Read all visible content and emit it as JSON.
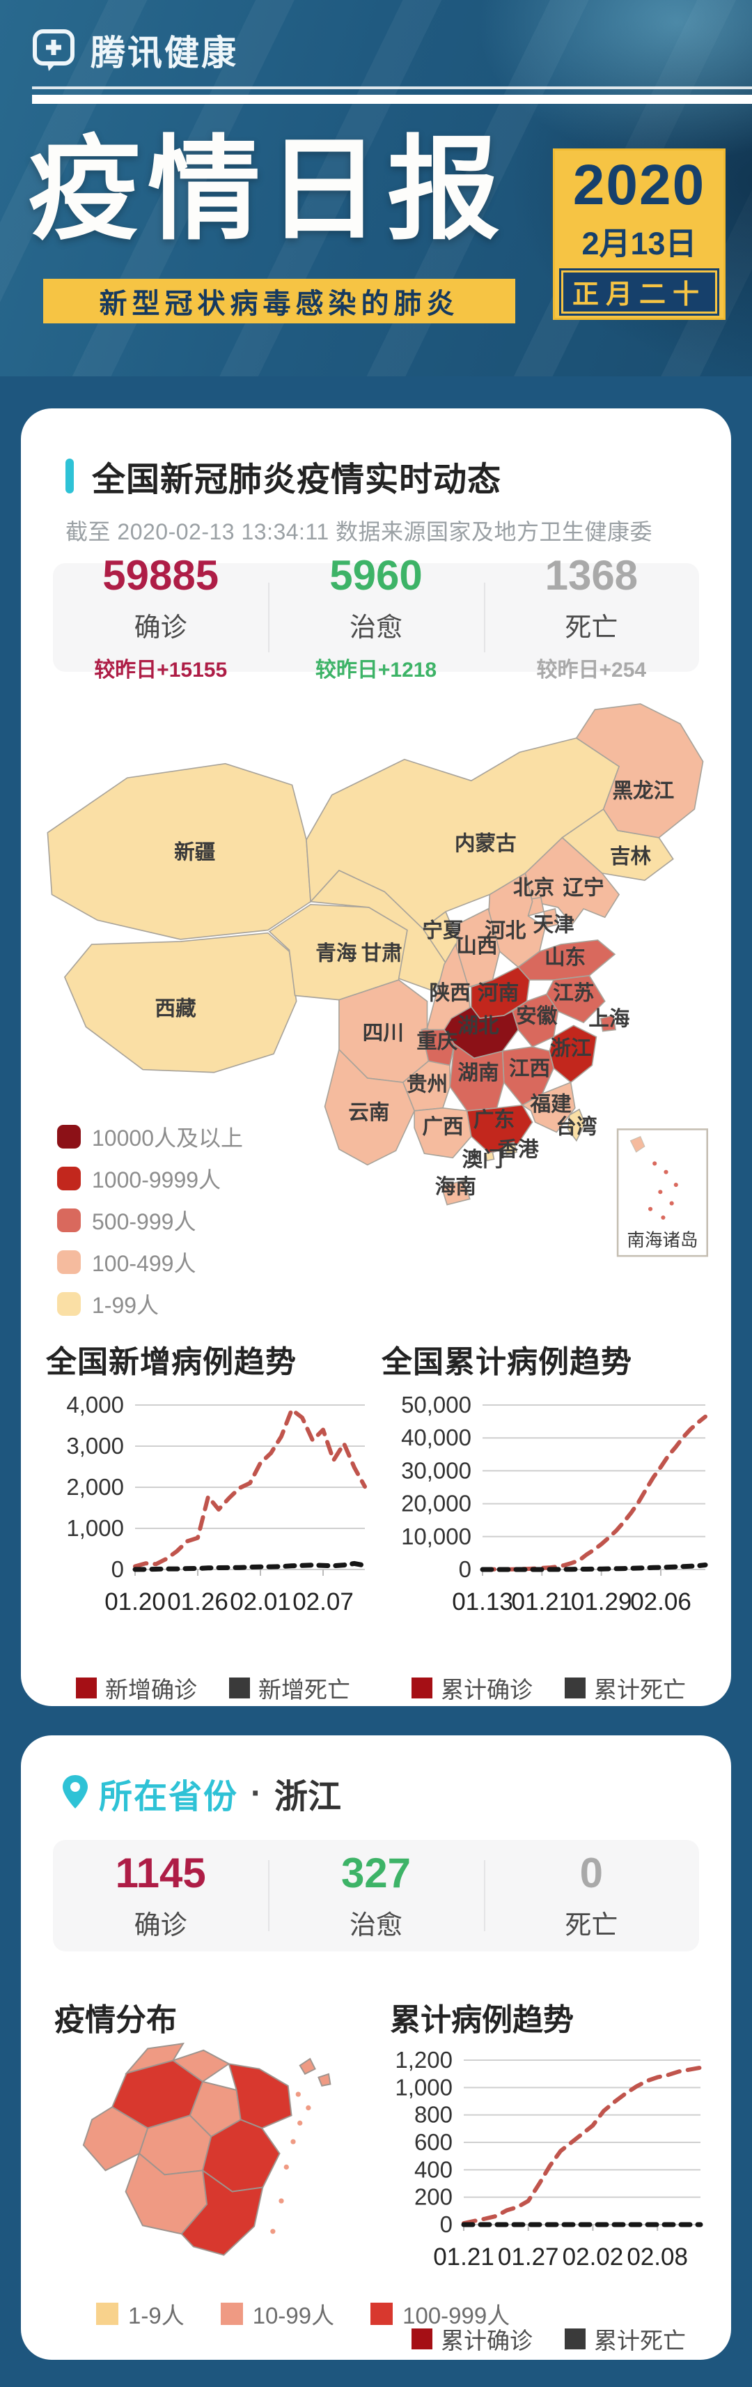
{
  "header": {
    "brand": "腾讯健康",
    "title": "疫情日报",
    "subtitle": "新型冠状病毒感染的肺炎",
    "year": "2020",
    "date": "2月13日",
    "lunar": "正月二十"
  },
  "colors": {
    "confirm": "#ae1d46",
    "cure": "#3db367",
    "death": "#a9a9a9",
    "teal": "#2ec2d6",
    "legend_confirm_sq": "#a50f15",
    "legend_death_sq": "#3a3a3a"
  },
  "national": {
    "section_title": "全国新冠肺炎疫情实时动态",
    "as_of": "截至 2020-02-13 13:34:11 数据来源国家及地方卫生健康委",
    "stats": [
      {
        "value": "59885",
        "label": "确诊",
        "delta": "较昨日+15155"
      },
      {
        "value": "5960",
        "label": "治愈",
        "delta": "较昨日+1218"
      },
      {
        "value": "1368",
        "label": "死亡",
        "delta": "较昨日+254"
      }
    ],
    "level_colors": {
      "5": "#8c1117",
      "4": "#c2271d",
      "3": "#d9695d",
      "2": "#f5bb9e",
      "1": "#fadfa5"
    },
    "map_legend": [
      {
        "level": 5,
        "label": "10000人及以上"
      },
      {
        "level": 4,
        "label": "1000-9999人"
      },
      {
        "level": 3,
        "label": "500-999人"
      },
      {
        "level": 2,
        "label": "100-499人"
      },
      {
        "level": 1,
        "label": "1-99人"
      }
    ],
    "inset_label": "南海诸岛",
    "provinces": [
      {
        "name": "新疆",
        "level": 1
      },
      {
        "name": "西藏",
        "level": 1
      },
      {
        "name": "青海",
        "level": 1
      },
      {
        "name": "甘肃",
        "level": 1
      },
      {
        "name": "宁夏",
        "level": 1
      },
      {
        "name": "内蒙古",
        "level": 1
      },
      {
        "name": "吉林",
        "level": 1
      },
      {
        "name": "台湾",
        "level": 1
      },
      {
        "name": "黑龙江",
        "level": 2
      },
      {
        "name": "辽宁",
        "level": 2
      },
      {
        "name": "北京",
        "level": 2
      },
      {
        "name": "天津",
        "level": 2
      },
      {
        "name": "河北",
        "level": 2
      },
      {
        "name": "山西",
        "level": 2
      },
      {
        "name": "陕西",
        "level": 2
      },
      {
        "name": "四川",
        "level": 2
      },
      {
        "name": "贵州",
        "level": 2
      },
      {
        "name": "云南",
        "level": 2
      },
      {
        "name": "广西",
        "level": 2
      },
      {
        "name": "福建",
        "level": 2
      },
      {
        "name": "海南",
        "level": 2
      },
      {
        "name": "上海",
        "level": 3
      },
      {
        "name": "山东",
        "level": 3
      },
      {
        "name": "江苏",
        "level": 3
      },
      {
        "name": "安徽",
        "level": 3
      },
      {
        "name": "江西",
        "level": 3
      },
      {
        "name": "重庆",
        "level": 3
      },
      {
        "name": "湖南",
        "level": 3
      },
      {
        "name": "河南",
        "level": 4
      },
      {
        "name": "浙江",
        "level": 4
      },
      {
        "name": "广东",
        "level": 4
      },
      {
        "name": "湖北",
        "level": 5
      },
      {
        "name": "香港",
        "level": 1
      },
      {
        "name": "澳门",
        "level": 1
      }
    ]
  },
  "province_card": {
    "section_title": "所在省份",
    "separator": "·",
    "province": "浙江",
    "stats": [
      {
        "value": "1145",
        "label": "确诊"
      },
      {
        "value": "327",
        "label": "治愈"
      },
      {
        "value": "0",
        "label": "死亡"
      }
    ],
    "dist_title": "疫情分布",
    "trend_title": "累计病例趋势",
    "level_colors": {
      "3": "#d8382e",
      "2": "#ef9a83",
      "1": "#f8d28c"
    },
    "zj_legend": [
      {
        "level": 1,
        "label": "1-9人"
      },
      {
        "level": 2,
        "label": "10-99人"
      },
      {
        "level": 3,
        "label": "100-999人"
      }
    ],
    "regions": [
      {
        "id": "hangzhou",
        "level": 3
      },
      {
        "id": "huzhou",
        "level": 2
      },
      {
        "id": "jiaxing",
        "level": 2
      },
      {
        "id": "shaoxing",
        "level": 2
      },
      {
        "id": "ningbo",
        "level": 3
      },
      {
        "id": "zhoushan",
        "level": 2
      },
      {
        "id": "jinhua",
        "level": 2
      },
      {
        "id": "quzhou",
        "level": 2
      },
      {
        "id": "lishui",
        "level": 2
      },
      {
        "id": "taizhou",
        "level": 3
      },
      {
        "id": "wenzhou",
        "level": 3
      }
    ]
  },
  "chart_data": [
    {
      "id": "national_new",
      "type": "line",
      "title": "全国新增病例趋势",
      "ylim": [
        0,
        4000
      ],
      "yticks": [
        0,
        1000,
        2000,
        3000,
        4000
      ],
      "grid": true,
      "legend_position": "bottom",
      "x": [
        "01.20",
        "01.21",
        "01.22",
        "01.23",
        "01.24",
        "01.25",
        "01.26",
        "01.27",
        "01.28",
        "01.29",
        "01.30",
        "01.31",
        "02.01",
        "02.02",
        "02.03",
        "02.04",
        "02.05",
        "02.06",
        "02.07",
        "02.08",
        "02.09",
        "02.10",
        "02.11"
      ],
      "xticks": [
        "01.20",
        "01.26",
        "02.01",
        "02.07"
      ],
      "xtick_idx": [
        0,
        6,
        12,
        18
      ],
      "series": [
        {
          "name": "新增确诊",
          "color": "#c0544c",
          "dash": "17 12",
          "width": 6,
          "values": [
            77,
            149,
            131,
            259,
            444,
            688,
            769,
            1771,
            1459,
            1737,
            1982,
            2102,
            2590,
            2829,
            3235,
            3887,
            3694,
            3143,
            3399,
            2656,
            3062,
            2478,
            2015
          ]
        },
        {
          "name": "新增死亡",
          "color": "#161616",
          "dash": "13 11",
          "width": 7,
          "values": [
            1,
            3,
            8,
            16,
            15,
            24,
            26,
            38,
            43,
            46,
            45,
            57,
            64,
            66,
            73,
            89,
            97,
            108,
            97,
            89,
            108,
            146,
            97
          ]
        }
      ]
    },
    {
      "id": "national_total",
      "type": "line",
      "title": "全国累计病例趋势",
      "ylim": [
        0,
        50000
      ],
      "yticks": [
        0,
        10000,
        20000,
        30000,
        40000,
        50000
      ],
      "grid": true,
      "legend_position": "bottom",
      "x": [
        "01.13",
        "01.14",
        "01.15",
        "01.16",
        "01.17",
        "01.18",
        "01.19",
        "01.20",
        "01.21",
        "01.22",
        "01.23",
        "01.24",
        "01.25",
        "01.26",
        "01.27",
        "01.28",
        "01.29",
        "01.30",
        "01.31",
        "02.01",
        "02.02",
        "02.03",
        "02.04",
        "02.05",
        "02.06",
        "02.07",
        "02.08",
        "02.09",
        "02.10",
        "02.11",
        "02.12"
      ],
      "xticks": [
        "01.13",
        "01.21",
        "01.29",
        "02.06"
      ],
      "xtick_idx": [
        0,
        8,
        16,
        24
      ],
      "series": [
        {
          "name": "累计确诊",
          "color": "#c0544c",
          "dash": "17 12",
          "width": 6,
          "values": [
            41,
            41,
            41,
            45,
            62,
            121,
            198,
            291,
            440,
            571,
            830,
            1287,
            1975,
            2744,
            4515,
            5974,
            7711,
            9692,
            11791,
            14380,
            17205,
            20438,
            24324,
            28018,
            31161,
            34546,
            37198,
            40171,
            42638,
            44653,
            46472
          ]
        },
        {
          "name": "累计死亡",
          "color": "#161616",
          "dash": "13 11",
          "width": 7,
          "values": [
            1,
            1,
            2,
            3,
            3,
            3,
            4,
            6,
            9,
            17,
            25,
            41,
            56,
            80,
            106,
            132,
            170,
            213,
            259,
            304,
            361,
            425,
            490,
            563,
            636,
            722,
            811,
            908,
            1016,
            1113,
            1367
          ]
        }
      ]
    },
    {
      "id": "zhejiang_total",
      "type": "line",
      "title": "累计病例趋势",
      "ylim": [
        0,
        1200
      ],
      "yticks": [
        0,
        200,
        400,
        600,
        800,
        1000,
        1200
      ],
      "grid": true,
      "legend_position": "bottom",
      "x": [
        "01.21",
        "01.22",
        "01.23",
        "01.24",
        "01.25",
        "01.26",
        "01.27",
        "01.28",
        "01.29",
        "01.30",
        "01.31",
        "02.01",
        "02.02",
        "02.03",
        "02.04",
        "02.05",
        "02.06",
        "02.07",
        "02.08",
        "02.09",
        "02.10",
        "02.11",
        "02.12"
      ],
      "xticks": [
        "01.21",
        "01.27",
        "02.02",
        "02.08"
      ],
      "xtick_idx": [
        0,
        6,
        12,
        18
      ],
      "series": [
        {
          "name": "累计确诊",
          "color": "#c0544c",
          "dash": "17 12",
          "width": 6,
          "values": [
            10,
            27,
            43,
            62,
            104,
            128,
            173,
            296,
            428,
            537,
            599,
            661,
            724,
            829,
            895,
            954,
            1006,
            1048,
            1075,
            1092,
            1117,
            1131,
            1145
          ]
        },
        {
          "name": "累计死亡",
          "color": "#161616",
          "dash": "13 11",
          "width": 7,
          "values": [
            0,
            0,
            0,
            0,
            0,
            0,
            0,
            0,
            0,
            0,
            0,
            0,
            0,
            0,
            0,
            0,
            0,
            0,
            0,
            0,
            0,
            0,
            0
          ]
        }
      ]
    }
  ]
}
